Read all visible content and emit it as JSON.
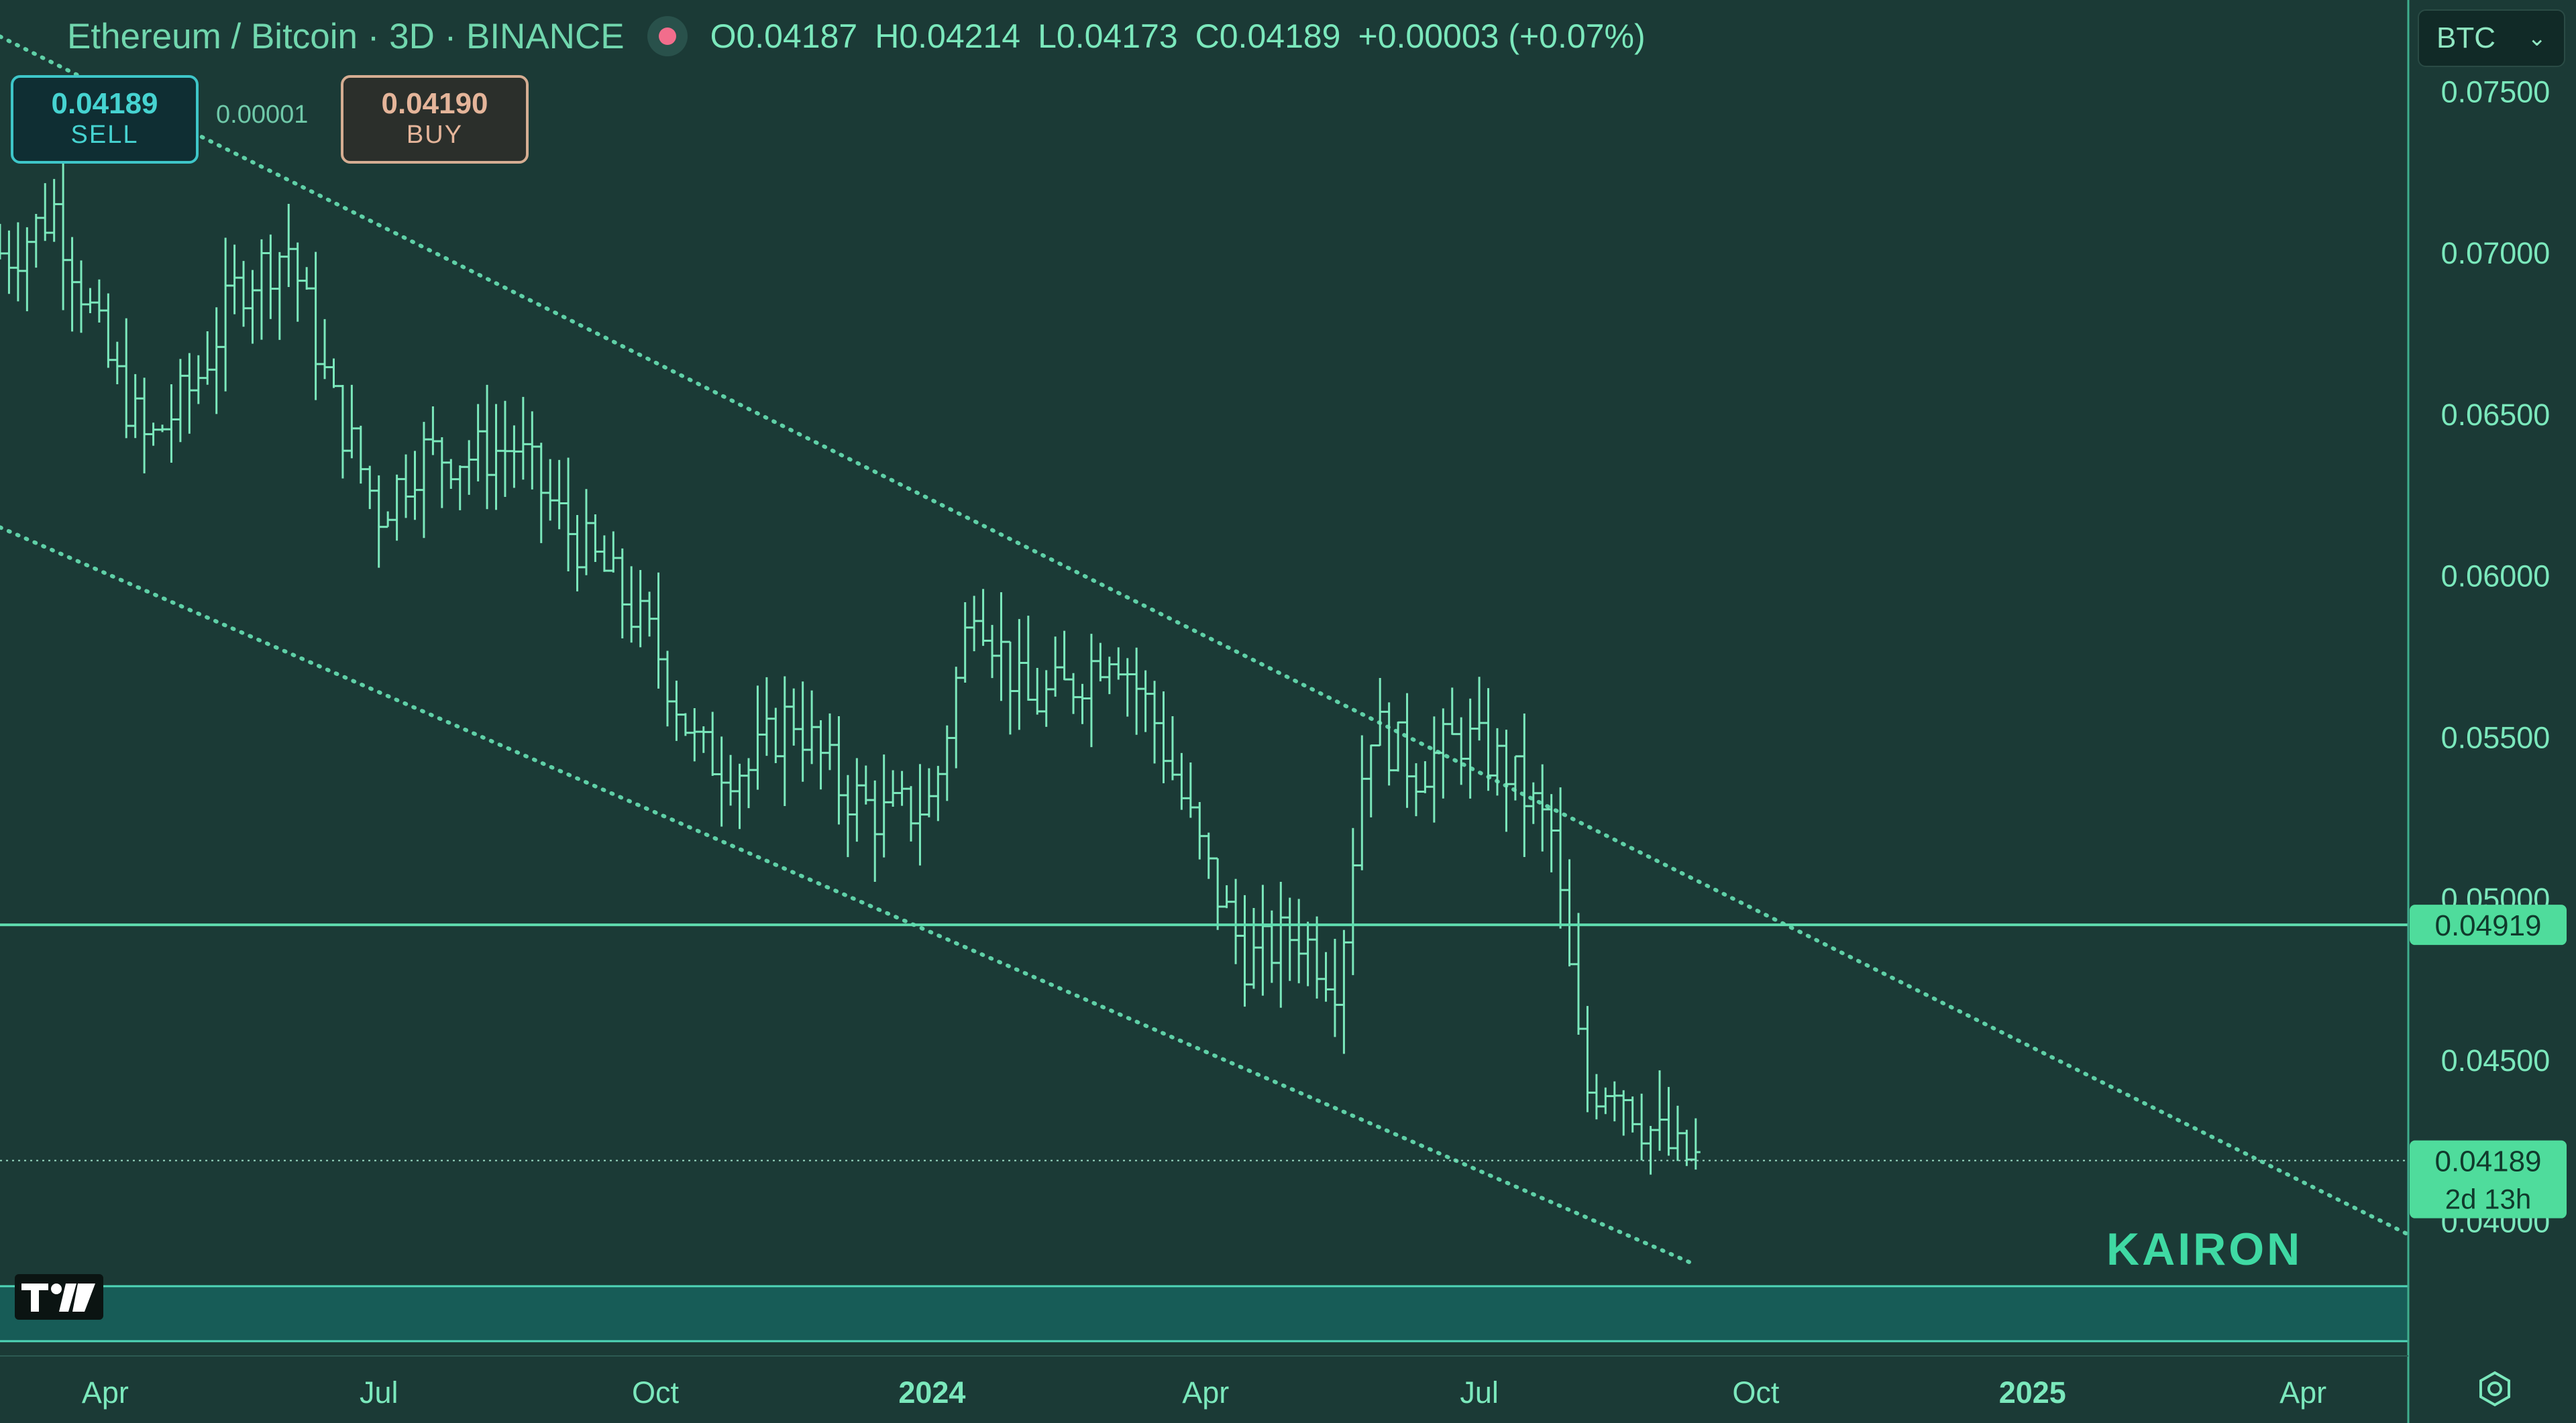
{
  "header": {
    "title": "Ethereum / Bitcoin · 3D · BINANCE",
    "ohlc": [
      "O0.04187",
      "H0.04214",
      "L0.04173",
      "C0.04189",
      "+0.00003 (+0.07%)"
    ]
  },
  "trade": {
    "sell_price": "0.04189",
    "sell_label": "SELL",
    "spread": "0.00001",
    "buy_price": "0.04190",
    "buy_label": "BUY"
  },
  "currency": {
    "value": "BTC"
  },
  "watermark": "KAIRON",
  "chart_data": {
    "type": "ohlc",
    "ylim": [
      0.038,
      0.077
    ],
    "y_ticks": [
      0.04,
      0.045,
      0.05,
      0.055,
      0.06,
      0.065,
      0.07,
      0.075
    ],
    "y_tick_labels": [
      "0.04000",
      "0.04500",
      "0.05000",
      "0.05500",
      "0.06000",
      "0.06500",
      "0.07000",
      "0.07500"
    ],
    "x_ticks": [
      {
        "date": "2023-04-01",
        "label": "Apr",
        "bold": false
      },
      {
        "date": "2023-07-01",
        "label": "Jul",
        "bold": false
      },
      {
        "date": "2023-10-01",
        "label": "Oct",
        "bold": false
      },
      {
        "date": "2024-01-01",
        "label": "2024",
        "bold": true
      },
      {
        "date": "2024-04-01",
        "label": "Apr",
        "bold": false
      },
      {
        "date": "2024-07-01",
        "label": "Jul",
        "bold": false
      },
      {
        "date": "2024-10-01",
        "label": "Oct",
        "bold": false
      },
      {
        "date": "2025-01-01",
        "label": "2025",
        "bold": true
      },
      {
        "date": "2025-04-01",
        "label": "Apr",
        "bold": false
      }
    ],
    "date_range": [
      "2023-02-25",
      "2025-05-06"
    ],
    "price_close": [
      [
        "2023-03-01",
        0.07
      ],
      [
        "2023-03-15",
        0.0714
      ],
      [
        "2023-04-01",
        0.0668
      ],
      [
        "2023-04-15",
        0.064
      ],
      [
        "2023-05-01",
        0.066
      ],
      [
        "2023-05-15",
        0.069
      ],
      [
        "2023-06-01",
        0.0702
      ],
      [
        "2023-06-15",
        0.0655
      ],
      [
        "2023-07-01",
        0.062
      ],
      [
        "2023-07-15",
        0.0638
      ],
      [
        "2023-08-01",
        0.0637
      ],
      [
        "2023-08-15",
        0.064
      ],
      [
        "2023-09-01",
        0.0615
      ],
      [
        "2023-09-15",
        0.06
      ],
      [
        "2023-10-01",
        0.0578
      ],
      [
        "2023-10-15",
        0.0545
      ],
      [
        "2023-11-01",
        0.054
      ],
      [
        "2023-11-15",
        0.0558
      ],
      [
        "2023-12-01",
        0.0535
      ],
      [
        "2023-12-15",
        0.0525
      ],
      [
        "2024-01-01",
        0.053
      ],
      [
        "2024-01-15",
        0.0595
      ],
      [
        "2024-02-01",
        0.056
      ],
      [
        "2024-02-15",
        0.0565
      ],
      [
        "2024-03-01",
        0.058
      ],
      [
        "2024-03-15",
        0.0555
      ],
      [
        "2024-04-01",
        0.051
      ],
      [
        "2024-04-15",
        0.048
      ],
      [
        "2024-05-01",
        0.049
      ],
      [
        "2024-05-15",
        0.0475
      ],
      [
        "2024-05-25",
        0.0555
      ],
      [
        "2024-06-10",
        0.054
      ],
      [
        "2024-06-25",
        0.055
      ],
      [
        "2024-07-10",
        0.054
      ],
      [
        "2024-07-25",
        0.052
      ],
      [
        "2024-08-05",
        0.044
      ],
      [
        "2024-08-15",
        0.0445
      ],
      [
        "2024-08-25",
        0.043
      ],
      [
        "2024-09-05",
        0.042
      ],
      [
        "2024-09-12",
        0.04189
      ]
    ],
    "trendlines": [
      {
        "name": "channel-upper",
        "points": [
          [
            "2023-02-25",
            0.0767
          ],
          [
            "2025-05-06",
            0.0396
          ]
        ]
      },
      {
        "name": "channel-lower",
        "points": [
          [
            "2023-02-25",
            0.0615
          ],
          [
            "2024-09-10",
            0.0387
          ]
        ]
      }
    ],
    "h_lines": [
      {
        "value": 0.04919,
        "label": "0.04919"
      },
      {
        "value": 0.04189,
        "label": "0.04189",
        "sublabel": "2d 13h",
        "dotted": true
      }
    ]
  }
}
